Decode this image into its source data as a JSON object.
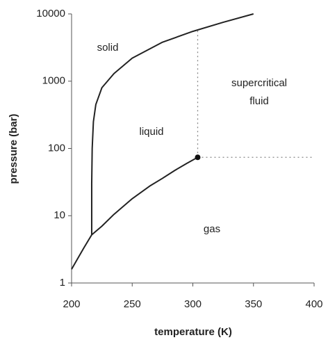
{
  "chart_data": {
    "type": "line",
    "x_label": "temperature (K)",
    "y_label": "pressure (bar)",
    "log_y": true,
    "xlim": [
      200,
      400
    ],
    "xticks": [
      200,
      250,
      300,
      350,
      400
    ],
    "ylim": [
      1,
      10000
    ],
    "yticks": [
      1,
      10,
      100,
      1000,
      10000
    ],
    "series": [
      {
        "color": "#222222",
        "x": [
          200,
          205,
          210,
          216.6,
          225,
          235,
          250,
          265,
          275,
          285,
          295,
          304
        ],
        "values": [
          1.6,
          2.3,
          3.3,
          5.2,
          7,
          10.5,
          17.9,
          28,
          36,
          47,
          60,
          73.8
        ]
      },
      {
        "color": "#222222",
        "x": [
          216.6,
          216.6,
          217,
          218,
          220,
          225,
          235,
          250,
          275,
          300,
          325,
          350
        ],
        "values": [
          5.2,
          30,
          100,
          250,
          450,
          800,
          1300,
          2200,
          3800,
          5500,
          7500,
          10000
        ]
      }
    ],
    "critical_point": {
      "x": 304,
      "y": 73.8
    },
    "annotations": [
      "solid",
      "liquid",
      "supercritical",
      "fluid",
      "gas"
    ]
  }
}
